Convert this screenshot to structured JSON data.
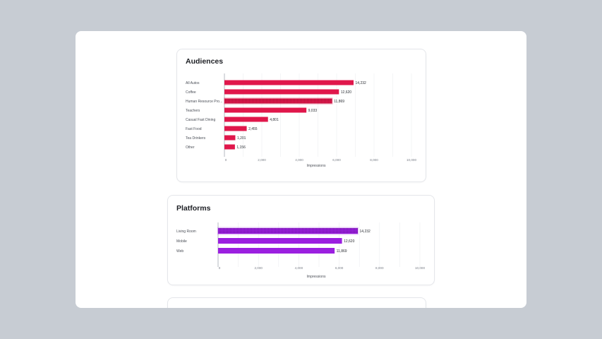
{
  "cards": [
    {
      "title": "Audiences"
    },
    {
      "title": "Platforms"
    }
  ],
  "chart_data": [
    {
      "type": "bar",
      "orientation": "horizontal",
      "title": "Audiences",
      "xlabel": "Impressions",
      "xticks": [
        "0",
        "2,000",
        "4,000",
        "6,000",
        "8,000",
        "10,000"
      ],
      "categories": [
        "All Autos",
        "Coffee",
        "Human Resource Pro...",
        "Teachers",
        "Casual Fast Dining",
        "Fast Food",
        "Tea Drinkers",
        "Other"
      ],
      "values": [
        14232,
        12620,
        11869,
        9033,
        4801,
        2455,
        1201,
        1156
      ],
      "value_labels": [
        "14,232",
        "12,620",
        "11,869",
        "9,033",
        "4,801",
        "2,455",
        "1,201",
        "1,156"
      ],
      "highlighted_category": "Human Resource Pro...",
      "bar_color": "#e0174b",
      "grid": true
    },
    {
      "type": "bar",
      "orientation": "horizontal",
      "title": "Platforms",
      "xlabel": "Impressions",
      "xticks": [
        "0",
        "2,000",
        "4,000",
        "6,000",
        "8,000",
        "10,000"
      ],
      "categories": [
        "Living Room",
        "Mobile",
        "Web"
      ],
      "values": [
        14232,
        12620,
        11869
      ],
      "value_labels": [
        "14,232",
        "12,620",
        "11,869"
      ],
      "highlighted_category": "Living Room",
      "bar_color": "#9b1fe0",
      "grid": true
    }
  ]
}
